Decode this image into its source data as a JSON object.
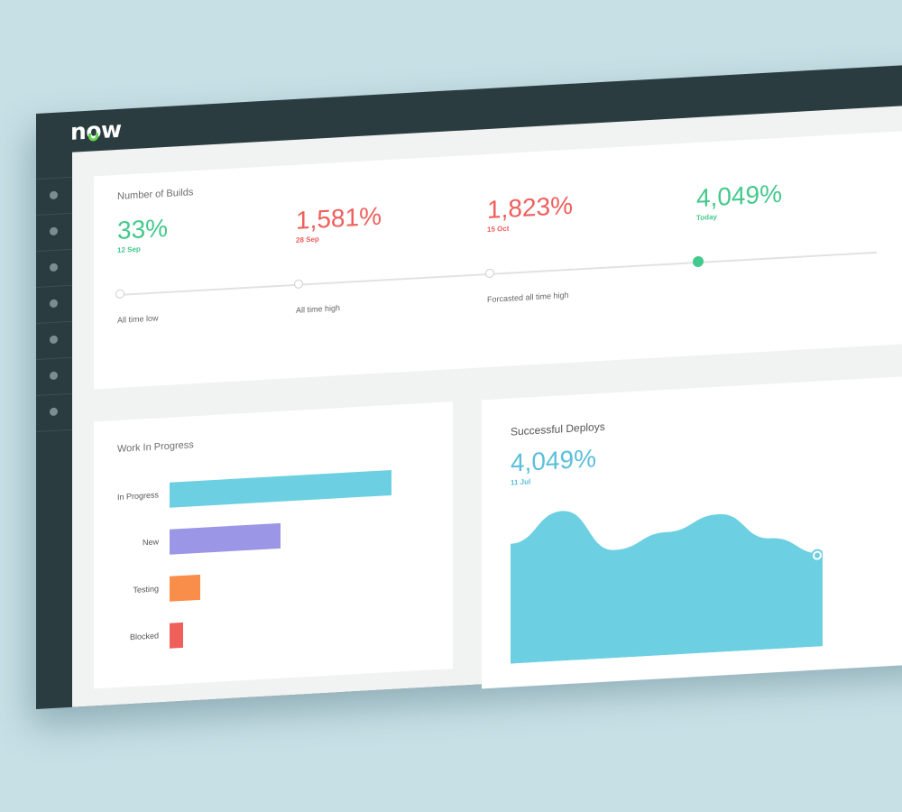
{
  "app": {
    "logo": "now"
  },
  "sidebar": {
    "items": [
      "dot",
      "dot",
      "dot",
      "dot",
      "dot",
      "dot",
      "dot"
    ]
  },
  "builds": {
    "title": "Number of Builds",
    "metrics": [
      {
        "value": "33%",
        "date": "12 Sep",
        "label": "All time low",
        "color": "#43c98c"
      },
      {
        "value": "1,581%",
        "date": "28 Sep",
        "label": "All time high",
        "color": "#ef5f5c"
      },
      {
        "value": "1,823%",
        "date": "15 Oct",
        "label": "Forcasted all time high",
        "color": "#ef5f5c"
      },
      {
        "value": "4,049%",
        "date": "Today",
        "label": "",
        "color": "#43c98c"
      }
    ]
  },
  "wip": {
    "title": "Work In Progress",
    "chart_data": {
      "type": "bar",
      "orientation": "horizontal",
      "categories": [
        "In Progress",
        "New",
        "Testing",
        "Blocked"
      ],
      "values": [
        100,
        50,
        14,
        6
      ],
      "colors": [
        "#6dd0e2",
        "#9b96e5",
        "#f98d4a",
        "#ef5f5c"
      ]
    }
  },
  "deploys": {
    "title": "Successful Deploys",
    "value": "4,049%",
    "date": "11 Jul",
    "chart_data": {
      "type": "area",
      "values": [
        80,
        100,
        72,
        82,
        92,
        74,
        62
      ],
      "ylim": [
        0,
        100
      ],
      "color": "#6dd0e2"
    }
  }
}
